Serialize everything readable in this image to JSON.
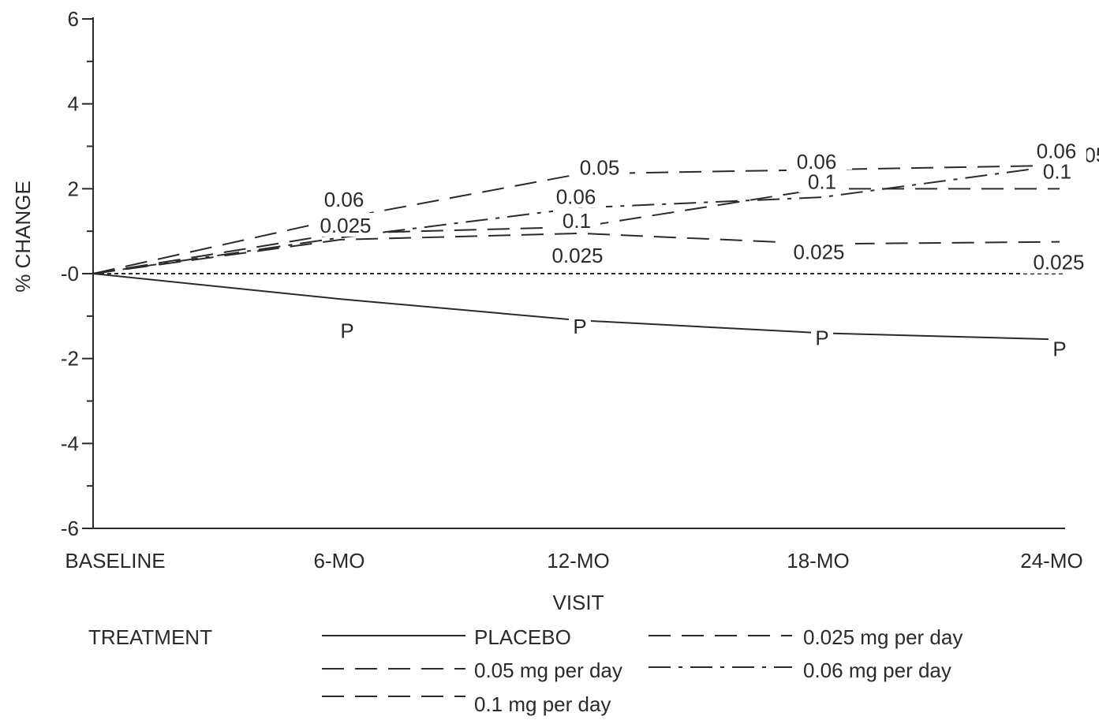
{
  "chart_data": {
    "type": "line",
    "xlabel": "VISIT",
    "ylabel": "% CHANGE",
    "categories": [
      "BASELINE",
      "6-MO",
      "12-MO",
      "18-MO",
      "24-MO"
    ],
    "ylim": [
      -6,
      6
    ],
    "yticks": [
      "6",
      "4",
      "2",
      "-0",
      "-2",
      "-4",
      "-6"
    ],
    "ytick_values": [
      6,
      4,
      2,
      0,
      -2,
      -4,
      -6
    ],
    "reference_line": 0,
    "legend_title": "TREATMENT",
    "series": [
      {
        "name": "PLACEBO",
        "marker": "P",
        "dash": "solid",
        "values": [
          0,
          -0.6,
          -1.1,
          -1.4,
          -1.55
        ]
      },
      {
        "name": "0.05 mg per day",
        "marker": "0.05",
        "dash": "longdash",
        "values": [
          0,
          1.3,
          2.35,
          2.45,
          2.55
        ]
      },
      {
        "name": "0.1 mg per day",
        "marker": "0.1",
        "dash": "longdash",
        "values": [
          0,
          0.95,
          1.1,
          2.0,
          2.0
        ]
      },
      {
        "name": "0.025 mg per day",
        "marker": "0.025",
        "dash": "longdash",
        "values": [
          0,
          0.8,
          0.95,
          0.7,
          0.75
        ]
      },
      {
        "name": "0.06 mg per day",
        "marker": "0.06",
        "dash": "dashdot",
        "values": [
          0,
          0.85,
          1.55,
          1.8,
          2.55
        ]
      }
    ]
  }
}
